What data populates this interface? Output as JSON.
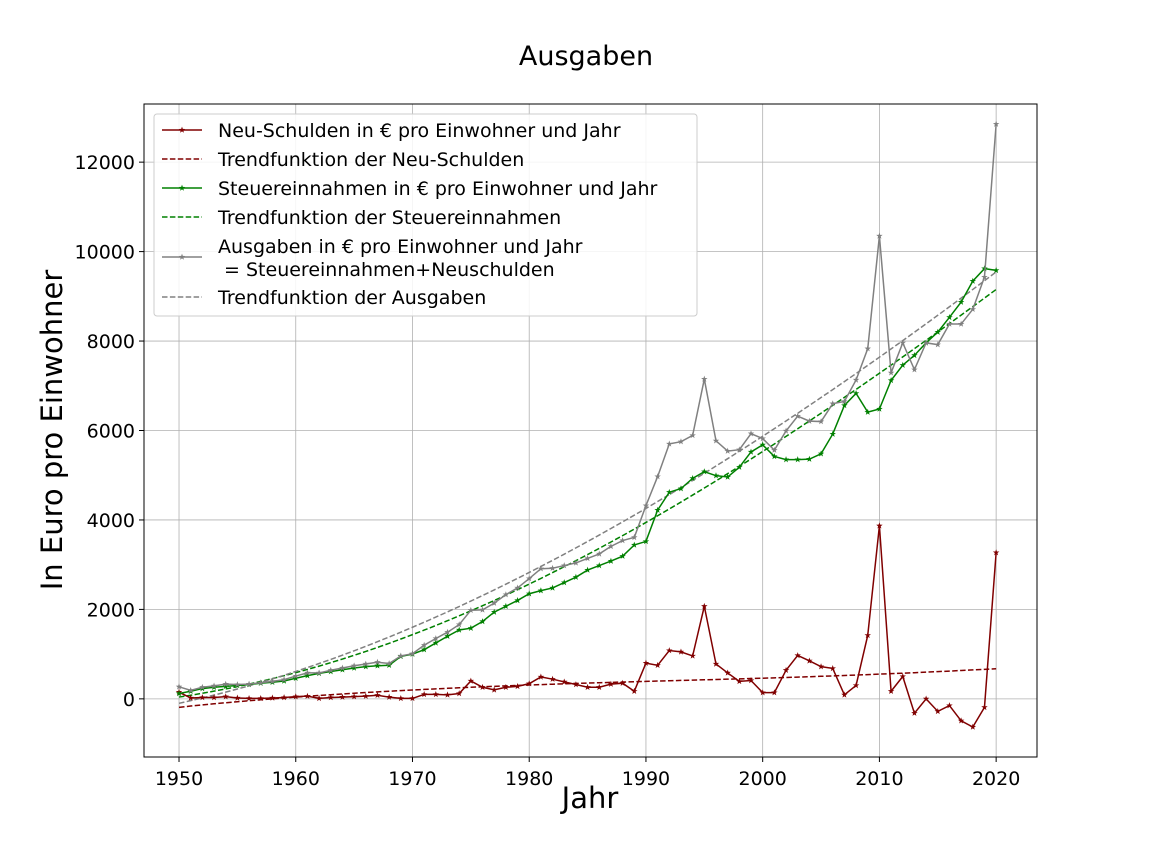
{
  "chart_data": {
    "type": "line",
    "title": "Ausgaben",
    "xlabel": "Jahr",
    "ylabel": "In Euro pro Einwohner",
    "xlim": [
      1947,
      2023.5
    ],
    "ylim": [
      -1300,
      13300
    ],
    "xticks": [
      1950,
      1960,
      1970,
      1980,
      1990,
      2000,
      2010,
      2020
    ],
    "yticks": [
      0,
      2000,
      4000,
      6000,
      8000,
      10000,
      12000
    ],
    "grid": true,
    "legend_position": "top-left",
    "x": [
      1950,
      1951,
      1952,
      1953,
      1954,
      1955,
      1956,
      1957,
      1958,
      1959,
      1960,
      1961,
      1962,
      1963,
      1964,
      1965,
      1966,
      1967,
      1968,
      1969,
      1970,
      1971,
      1972,
      1973,
      1974,
      1975,
      1976,
      1977,
      1978,
      1979,
      1980,
      1981,
      1982,
      1983,
      1984,
      1985,
      1986,
      1987,
      1988,
      1989,
      1990,
      1991,
      1992,
      1993,
      1994,
      1995,
      1996,
      1997,
      1998,
      1999,
      2000,
      2001,
      2002,
      2003,
      2004,
      2005,
      2006,
      2007,
      2008,
      2009,
      2010,
      2011,
      2012,
      2013,
      2014,
      2015,
      2016,
      2017,
      2018,
      2019,
      2020
    ],
    "series": [
      {
        "name": "Neu-Schulden in € pro Einwohner und Jahr",
        "color": "#800000",
        "style": "solid-star",
        "values": [
          150,
          20,
          30,
          30,
          50,
          20,
          10,
          10,
          20,
          30,
          50,
          60,
          10,
          30,
          40,
          50,
          60,
          80,
          40,
          10,
          10,
          100,
          100,
          90,
          120,
          400,
          260,
          200,
          260,
          280,
          340,
          490,
          440,
          380,
          320,
          260,
          260,
          330,
          350,
          170,
          800,
          750,
          1080,
          1050,
          960,
          2070,
          780,
          580,
          390,
          410,
          140,
          140,
          640,
          970,
          850,
          720,
          680,
          90,
          300,
          1420,
          3870,
          170,
          500,
          -320,
          0,
          -280,
          -150,
          -490,
          -630,
          -190,
          3270
        ]
      },
      {
        "name": "Trendfunktion der Neu-Schulden",
        "color": "#800000",
        "style": "dashed",
        "values": [
          -190,
          -160,
          -135,
          -110,
          -87,
          -64,
          -42,
          -20,
          0,
          20,
          40,
          58,
          76,
          93,
          110,
          126,
          141,
          156,
          171,
          185,
          198,
          211,
          224,
          236,
          248,
          259,
          270,
          280,
          291,
          300,
          310,
          319,
          328,
          336,
          345,
          353,
          361,
          368,
          376,
          383,
          390,
          398,
          405,
          412,
          419,
          426,
          433,
          440,
          447,
          455,
          462,
          470,
          478,
          486,
          495,
          504,
          513,
          522,
          532,
          542,
          553,
          563,
          574,
          585,
          597,
          609,
          621,
          634,
          647,
          660,
          674
        ]
      },
      {
        "name": "Steuereinnahmen in € pro Einwohner und Jahr",
        "color": "#008000",
        "style": "solid-star",
        "values": [
          120,
          170,
          230,
          260,
          280,
          300,
          320,
          350,
          370,
          400,
          460,
          520,
          570,
          610,
          650,
          690,
          720,
          740,
          750,
          950,
          1000,
          1100,
          1250,
          1400,
          1540,
          1580,
          1730,
          1940,
          2070,
          2200,
          2350,
          2420,
          2480,
          2600,
          2720,
          2880,
          2980,
          3080,
          3190,
          3440,
          3520,
          4220,
          4620,
          4700,
          4930,
          5080,
          4990,
          4960,
          5180,
          5520,
          5680,
          5420,
          5350,
          5350,
          5360,
          5480,
          5920,
          6560,
          6830,
          6410,
          6480,
          7120,
          7460,
          7680,
          7960,
          8200,
          8530,
          8870,
          9340,
          9620,
          9580
        ]
      },
      {
        "name": "Trendfunktion der Steuereinnahmen",
        "color": "#008000",
        "style": "dashed",
        "values": [
          40,
          80,
          125,
          172,
          222,
          275,
          330,
          390,
          452,
          518,
          586,
          658,
          732,
          810,
          890,
          974,
          1060,
          1150,
          1242,
          1338,
          1436,
          1537,
          1640,
          1747,
          1856,
          1968,
          2082,
          2199,
          2319,
          2441,
          2566,
          2693,
          2823,
          2955,
          3089,
          3226,
          3365,
          3507,
          3650,
          3796,
          3944,
          4094,
          4246,
          4400,
          4556,
          4714,
          4873,
          5035,
          5198,
          5363,
          5530,
          5698,
          5868,
          6040,
          6213,
          6387,
          6563,
          6740,
          6919,
          7099,
          7280,
          7462,
          7646,
          7830,
          8016,
          8203,
          8391,
          8580,
          8770,
          8961,
          9153
        ]
      },
      {
        "name": "Ausgaben in € pro Einwohner und Jahr\n = Steuereinnahmen+Neuschulden",
        "color": "#808080",
        "style": "solid-star",
        "values": [
          270,
          190,
          260,
          290,
          330,
          320,
          330,
          360,
          390,
          430,
          510,
          580,
          580,
          640,
          690,
          740,
          780,
          820,
          790,
          960,
          1010,
          1200,
          1350,
          1490,
          1660,
          1980,
          1990,
          2140,
          2330,
          2480,
          2690,
          2910,
          2920,
          2980,
          3040,
          3140,
          3240,
          3410,
          3540,
          3610,
          4320,
          4970,
          5700,
          5750,
          5890,
          7150,
          5770,
          5540,
          5570,
          5930,
          5820,
          5560,
          5990,
          6320,
          6210,
          6200,
          6600,
          6650,
          7130,
          7830,
          10350,
          7290,
          7960,
          7360,
          7960,
          7920,
          8380,
          8380,
          8710,
          9430,
          12850
        ]
      },
      {
        "name": "Trendfunktion der Ausgaben",
        "color": "#808080",
        "style": "dashed",
        "values": [
          -100,
          -40,
          20,
          84,
          150,
          220,
          292,
          368,
          446,
          528,
          612,
          700,
          790,
          882,
          977,
          1075,
          1175,
          1278,
          1383,
          1491,
          1601,
          1713,
          1828,
          1945,
          2064,
          2186,
          2310,
          2436,
          2564,
          2694,
          2826,
          2961,
          3097,
          3235,
          3376,
          3518,
          3662,
          3809,
          3957,
          4107,
          4258,
          4412,
          4567,
          4724,
          4883,
          5044,
          5206,
          5370,
          5535,
          5702,
          5871,
          6041,
          6213,
          6386,
          6561,
          6737,
          6914,
          7093,
          7274,
          7456,
          7639,
          7824,
          8010,
          8197,
          8386,
          8576,
          8767,
          8960,
          9154,
          9349,
          9545
        ]
      }
    ]
  }
}
